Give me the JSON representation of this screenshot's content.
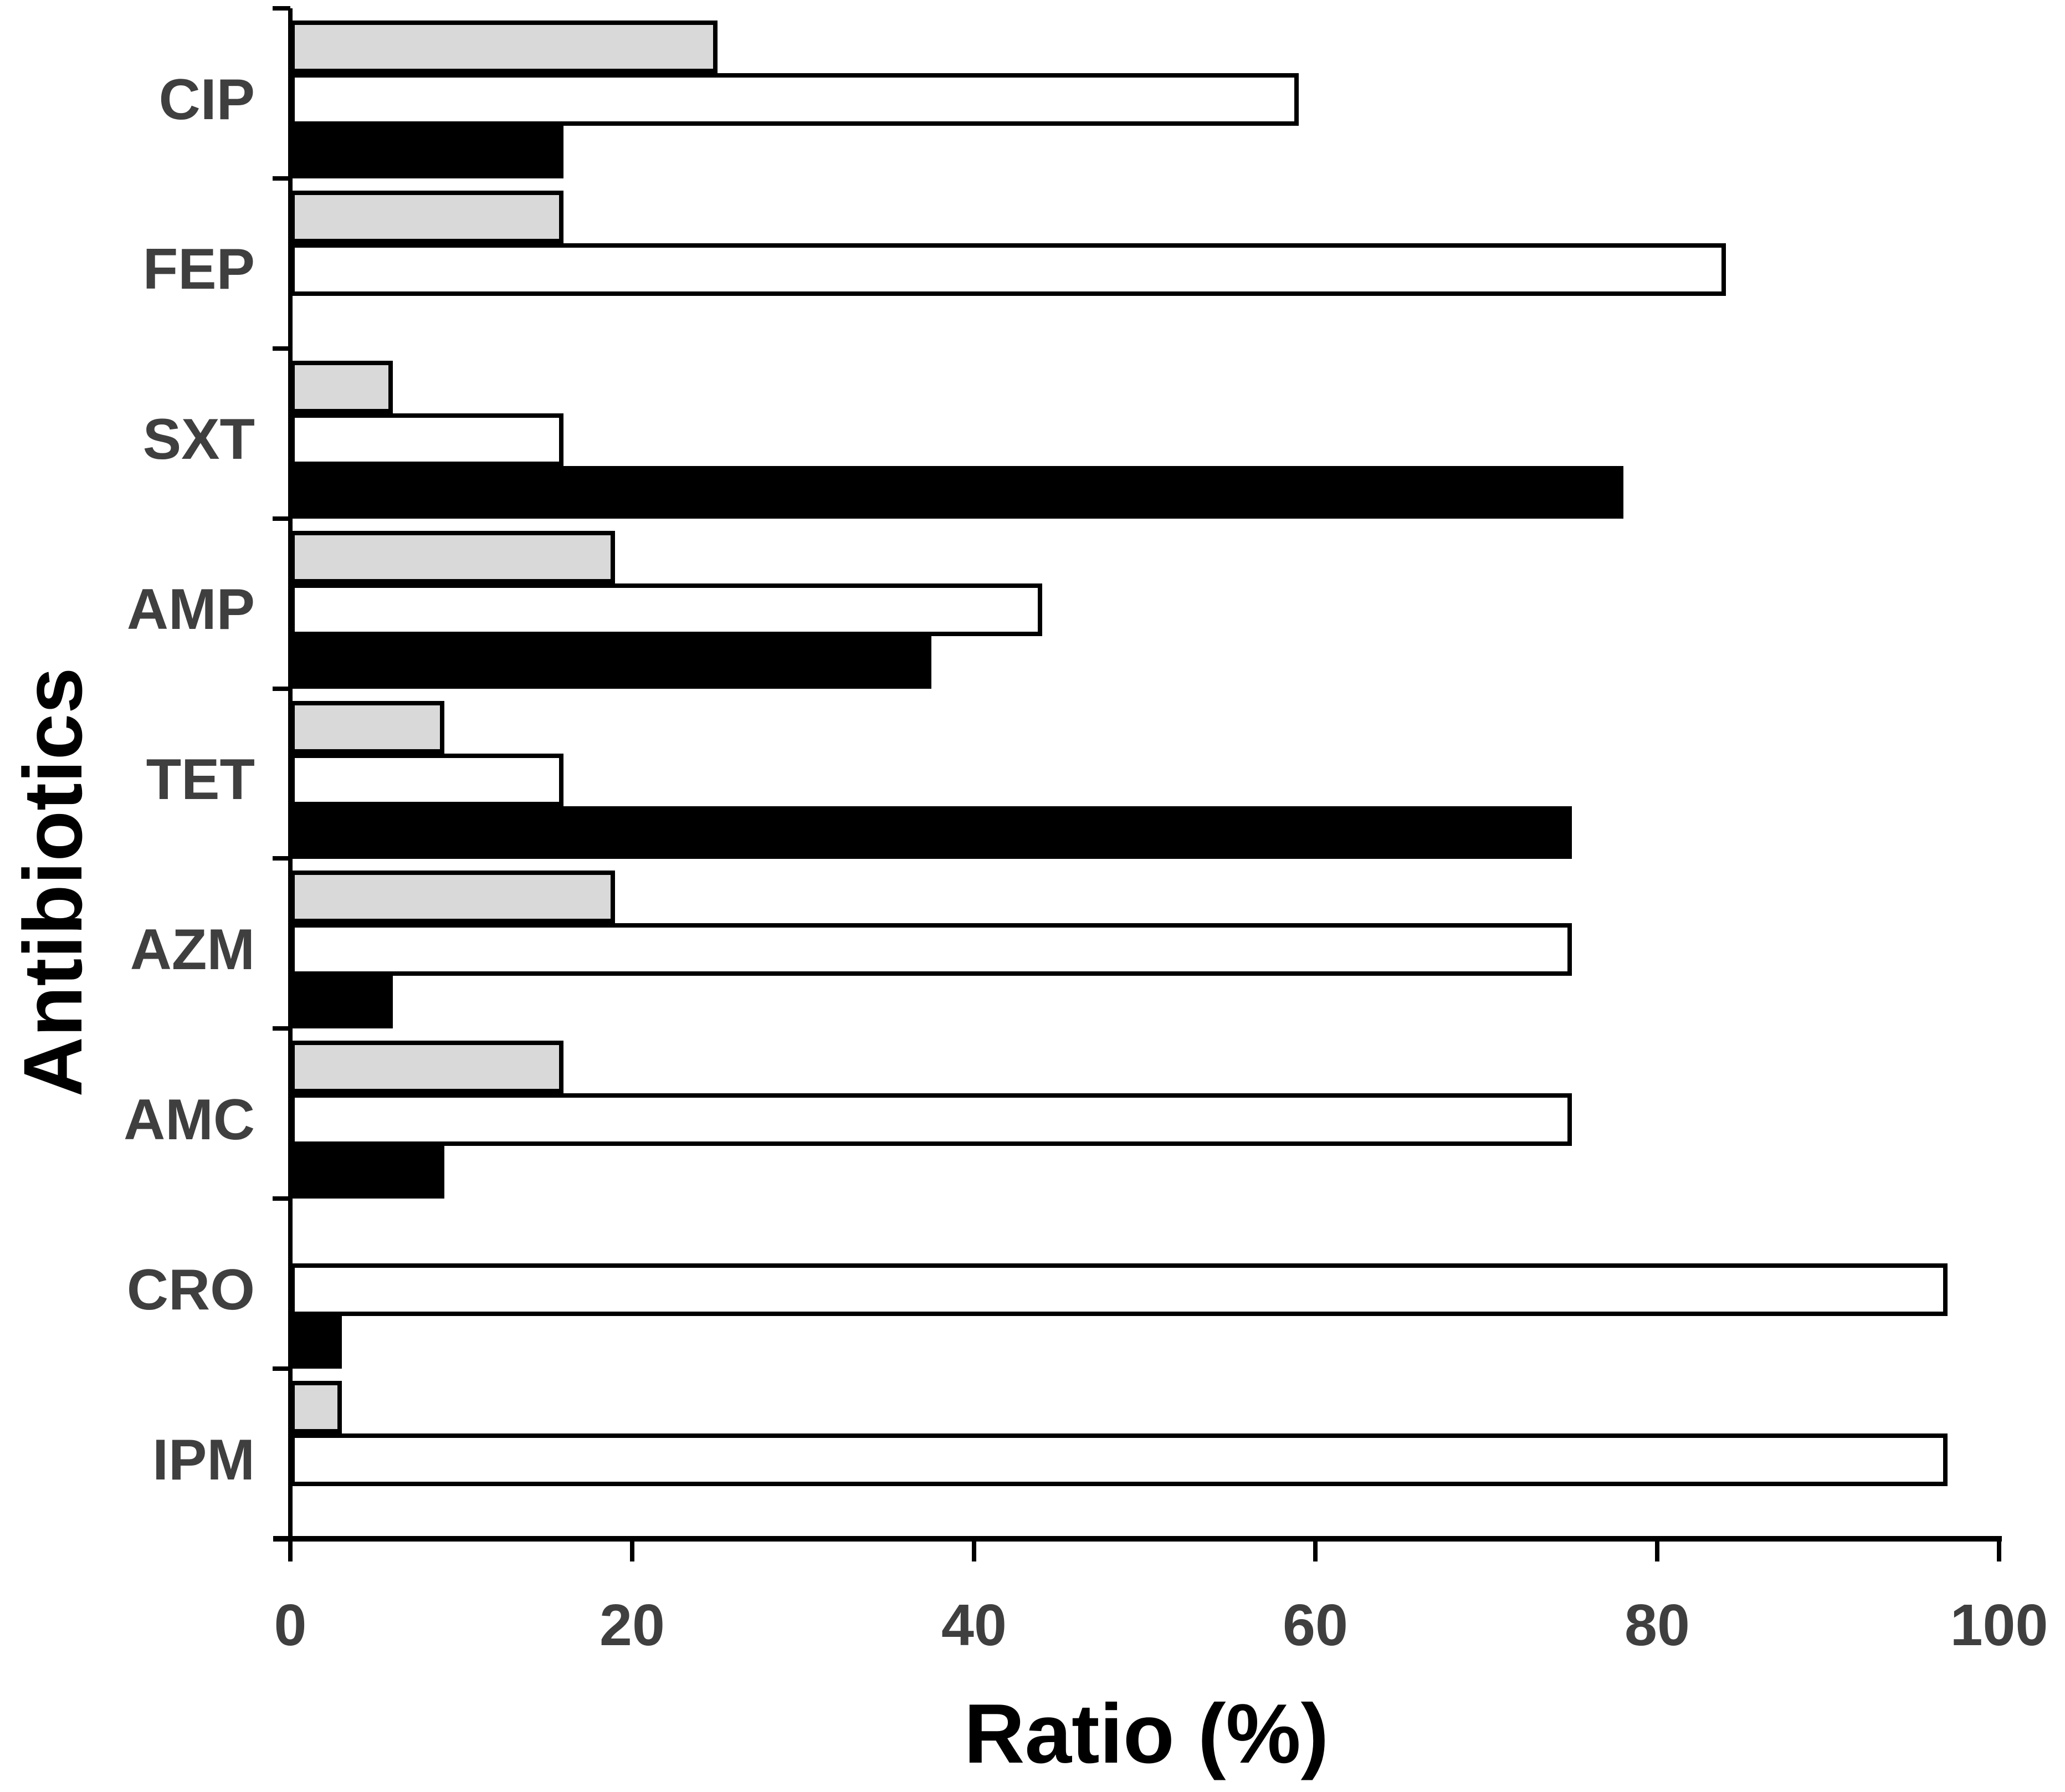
{
  "chart_data": {
    "type": "bar",
    "orientation": "horizontal",
    "title": "",
    "xlabel": "Ratio (%)",
    "ylabel": "Antibiotics",
    "xlim": [
      0,
      100
    ],
    "x_ticks": [
      0,
      20,
      40,
      60,
      80,
      100
    ],
    "grid": false,
    "legend_position": "none",
    "categories": [
      "CIP",
      "FEP",
      "SXT",
      "AMP",
      "TET",
      "AZM",
      "AMC",
      "CRO",
      "IPM"
    ],
    "series": [
      {
        "name": "light-gray-bar",
        "color": "#d9d9d9",
        "values": [
          25,
          16,
          6,
          19,
          9,
          19,
          16,
          0,
          3
        ]
      },
      {
        "name": "white-bar",
        "color": "#ffffff",
        "values": [
          59,
          84,
          16,
          44,
          16,
          75,
          75,
          97,
          97
        ]
      },
      {
        "name": "black-bar",
        "color": "#000000",
        "values": [
          16,
          0,
          78,
          37.5,
          75,
          6,
          9,
          3,
          0
        ]
      }
    ]
  },
  "styles": {
    "bar_border_color": "#000000",
    "axis_color": "#000000",
    "tick_label_color": "#3f3f3f",
    "category_label_color": "#3f3f3f",
    "title_color": "#000000",
    "background": "#ffffff"
  }
}
